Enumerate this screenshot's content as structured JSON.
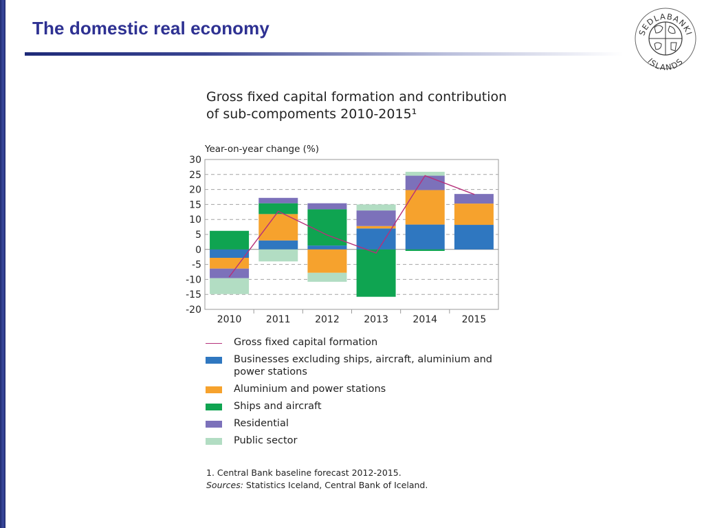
{
  "slide": {
    "title": "The domestic real economy"
  },
  "logo": {
    "icon": "sedlabanki-seal-icon",
    "text_top": "SEDLABANKI",
    "text_bottom": "ISLANDS"
  },
  "chart_title_lines": [
    "Gross fixed capital formation and contribution",
    "of sub-compoments 2010-2015¹"
  ],
  "chart_data": {
    "type": "bar",
    "stacked": true,
    "title": "Gross fixed capital formation and contribution of sub-compoments 2010-2015¹",
    "ylabel": "Year-on-year change (%)",
    "ylim": [
      -20,
      30
    ],
    "yticks": [
      30,
      25,
      20,
      15,
      10,
      5,
      0,
      -5,
      -10,
      -15,
      -20
    ],
    "grid": "dashed",
    "categories": [
      "2010",
      "2011",
      "2012",
      "2013",
      "2014",
      "2015"
    ],
    "series": [
      {
        "name": "Businesses excluding ships, aircraft, aluminium and power stations",
        "color": "#2f77c0",
        "values": [
          -2.8,
          3,
          1.3,
          7,
          8.3,
          8.2
        ]
      },
      {
        "name": "Aluminium and power stations",
        "color": "#f6a22d",
        "values": [
          -3.6,
          8.8,
          -7.8,
          0.8,
          11.5,
          7.1
        ]
      },
      {
        "name": "Ships and aircraft",
        "color": "#0fa451",
        "values": [
          6.2,
          3.6,
          12.1,
          -15.8,
          -0.5,
          0
        ]
      },
      {
        "name": "Residential",
        "color": "#7c71ba",
        "values": [
          -3.2,
          1.8,
          2,
          5.2,
          4.8,
          3.2
        ]
      },
      {
        "name": "Public sector",
        "color": "#b2ddc3",
        "values": [
          -5.3,
          -4,
          -3,
          2,
          1.3,
          0
        ]
      }
    ],
    "line": {
      "name": "Gross fixed capital formation",
      "color": "#b5307a",
      "values": [
        -9.1,
        12.7,
        4.8,
        -1.2,
        24.6,
        18.4
      ]
    }
  },
  "legend": [
    {
      "key": "line",
      "label": "Gross fixed capital formation",
      "color": "#b5307a"
    },
    {
      "key": "businesses",
      "label": "Businesses excluding ships, aircraft, aluminium and power stations",
      "color": "#2f77c0"
    },
    {
      "key": "aluminium",
      "label": "Aluminium and power stations",
      "color": "#f6a22d"
    },
    {
      "key": "ships",
      "label": "Ships and aircraft",
      "color": "#0fa451"
    },
    {
      "key": "residential",
      "label": "Residential",
      "color": "#7c71ba"
    },
    {
      "key": "public",
      "label": "Public sector",
      "color": "#b2ddc3"
    }
  ],
  "footnote": {
    "note": "1. Central Bank baseline forecast 2012-2015.",
    "sources_label": "Sources:",
    "sources_text": " Statistics Iceland, Central Bank of Iceland."
  }
}
